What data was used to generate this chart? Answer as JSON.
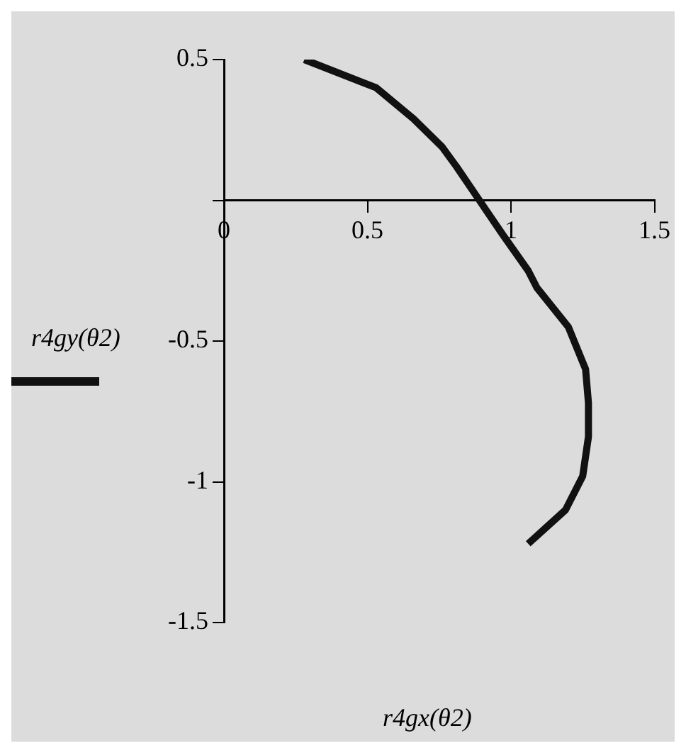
{
  "chart_data": {
    "type": "line",
    "xlabel": "r4gx(θ2)",
    "ylabel": "r4gy(θ2)",
    "color": "#111111",
    "marker": "none",
    "grid": false,
    "x": [
      0.28,
      0.53,
      0.66,
      0.76,
      0.81,
      0.89,
      0.97,
      1.06,
      1.09,
      1.2,
      1.26,
      1.27,
      1.27,
      1.25,
      1.19,
      1.06
    ],
    "values": [
      0.5,
      0.4,
      0.29,
      0.19,
      0.12,
      0,
      -0.12,
      -0.25,
      -0.31,
      -0.45,
      -0.6,
      -0.72,
      -0.84,
      -0.98,
      -1.1,
      -1.22
    ],
    "xlim": [
      0,
      1.5
    ],
    "xticks": [
      0,
      0.5,
      1,
      1.5
    ],
    "ylim": [
      -1.5,
      0.5
    ],
    "yticks": [
      -1.5,
      -1,
      -0.5,
      {
        "value": 0,
        "label": null
      },
      0.5
    ]
  }
}
